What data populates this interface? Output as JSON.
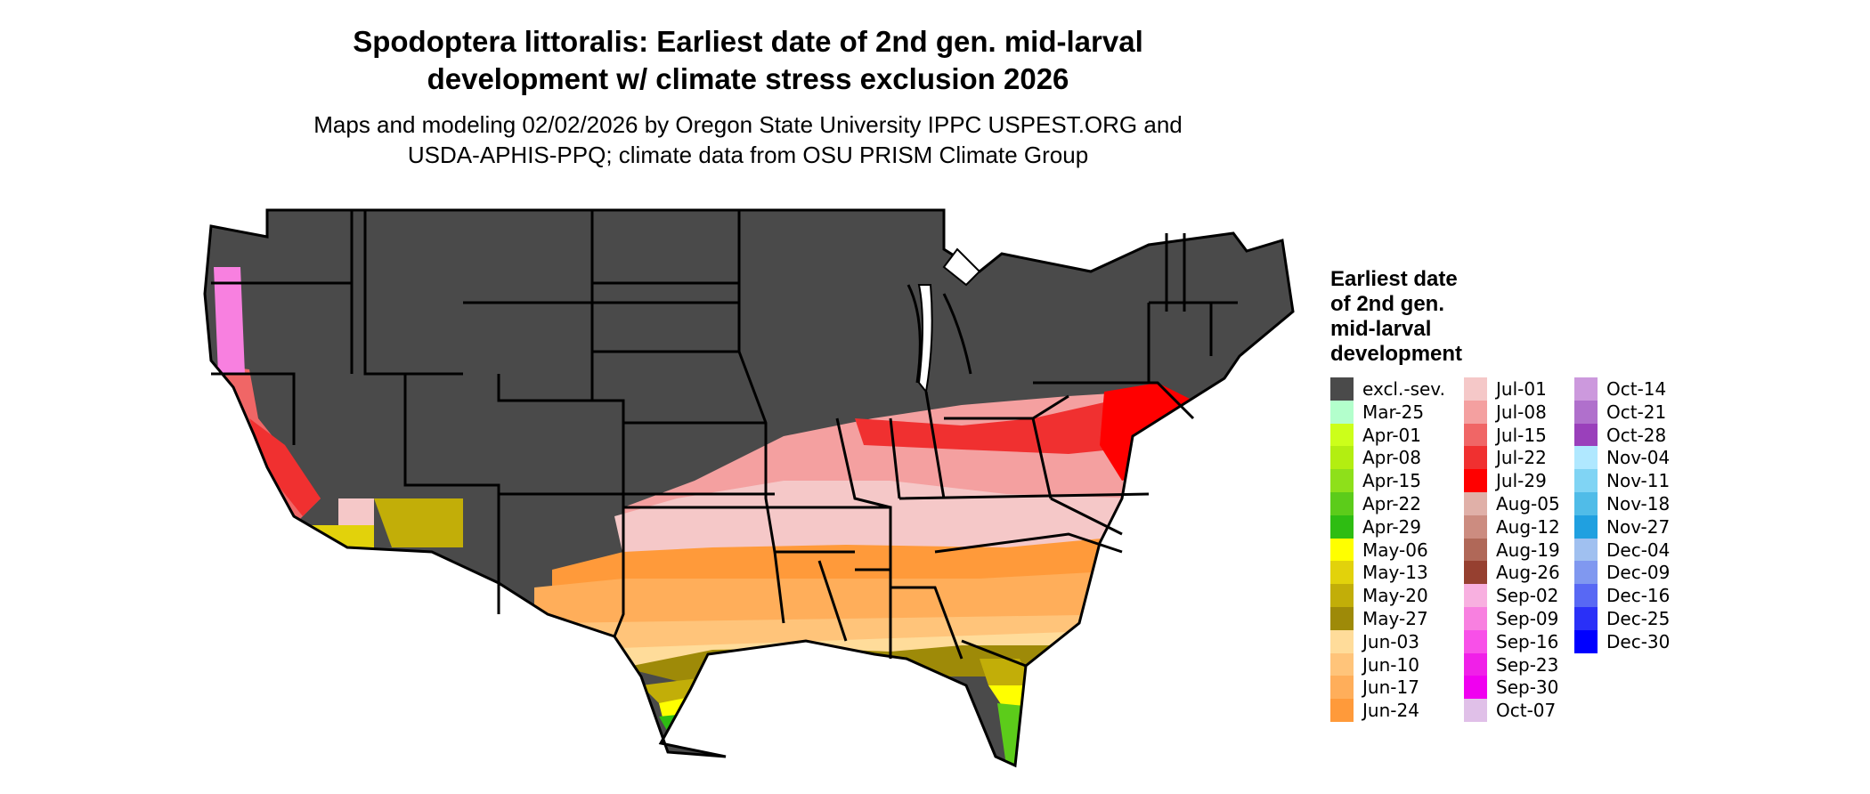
{
  "title": {
    "line1": "Spodoptera littoralis: Earliest date of 2nd gen. mid-larval",
    "line2": "development w/ climate stress exclusion 2026"
  },
  "subtitle": {
    "line1": "Maps and modeling 02/02/2026 by Oregon State University IPPC USPEST.ORG and",
    "line2": "USDA-APHIS-PPQ; climate data from OSU PRISM Climate Group"
  },
  "legend": {
    "title_lines": [
      "Earliest date",
      "of 2nd gen.",
      "mid-larval",
      "development"
    ],
    "items": [
      {
        "label": "excl.-sev.",
        "color": "#4a4a4a"
      },
      {
        "label": "Mar-25",
        "color": "#b3ffcc"
      },
      {
        "label": "Apr-01",
        "color": "#ccff1a"
      },
      {
        "label": "Apr-08",
        "color": "#b3ee11"
      },
      {
        "label": "Apr-15",
        "color": "#8ee01a"
      },
      {
        "label": "Apr-22",
        "color": "#5ccc1a"
      },
      {
        "label": "Apr-29",
        "color": "#2ebd12"
      },
      {
        "label": "May-06",
        "color": "#ffff00"
      },
      {
        "label": "May-13",
        "color": "#e2d20b"
      },
      {
        "label": "May-20",
        "color": "#c2ae08"
      },
      {
        "label": "May-27",
        "color": "#9e8a08"
      },
      {
        "label": "Jun-03",
        "color": "#ffdc9a"
      },
      {
        "label": "Jun-10",
        "color": "#ffc47a"
      },
      {
        "label": "Jun-17",
        "color": "#ffae5a"
      },
      {
        "label": "Jun-24",
        "color": "#ff9a3a"
      },
      {
        "label": "Jul-01",
        "color": "#f5c8c8"
      },
      {
        "label": "Jul-08",
        "color": "#f4a0a0"
      },
      {
        "label": "Jul-15",
        "color": "#f06666"
      },
      {
        "label": "Jul-22",
        "color": "#f03030"
      },
      {
        "label": "Jul-29",
        "color": "#ff0000"
      },
      {
        "label": "Aug-05",
        "color": "#e0b0a8"
      },
      {
        "label": "Aug-12",
        "color": "#cc8c80"
      },
      {
        "label": "Aug-19",
        "color": "#b06858"
      },
      {
        "label": "Aug-26",
        "color": "#964030"
      },
      {
        "label": "Sep-02",
        "color": "#f8b0e0"
      },
      {
        "label": "Sep-09",
        "color": "#f880e0"
      },
      {
        "label": "Sep-16",
        "color": "#f850e8"
      },
      {
        "label": "Sep-23",
        "color": "#f020e8"
      },
      {
        "label": "Sep-30",
        "color": "#f000f0"
      },
      {
        "label": "Oct-07",
        "color": "#e0c0e8"
      },
      {
        "label": "Oct-14",
        "color": "#cc99dd"
      },
      {
        "label": "Oct-21",
        "color": "#b070cc"
      },
      {
        "label": "Oct-28",
        "color": "#9a40bb"
      },
      {
        "label": "Nov-04",
        "color": "#b0e8ff"
      },
      {
        "label": "Nov-11",
        "color": "#80d4f4"
      },
      {
        "label": "Nov-18",
        "color": "#50bce8"
      },
      {
        "label": "Nov-27",
        "color": "#20a0e0"
      },
      {
        "label": "Dec-04",
        "color": "#a0c0f0"
      },
      {
        "label": "Dec-09",
        "color": "#8098f0"
      },
      {
        "label": "Dec-16",
        "color": "#5868f4"
      },
      {
        "label": "Dec-25",
        "color": "#2a30f8"
      },
      {
        "label": "Dec-30",
        "color": "#0000ff"
      }
    ]
  }
}
